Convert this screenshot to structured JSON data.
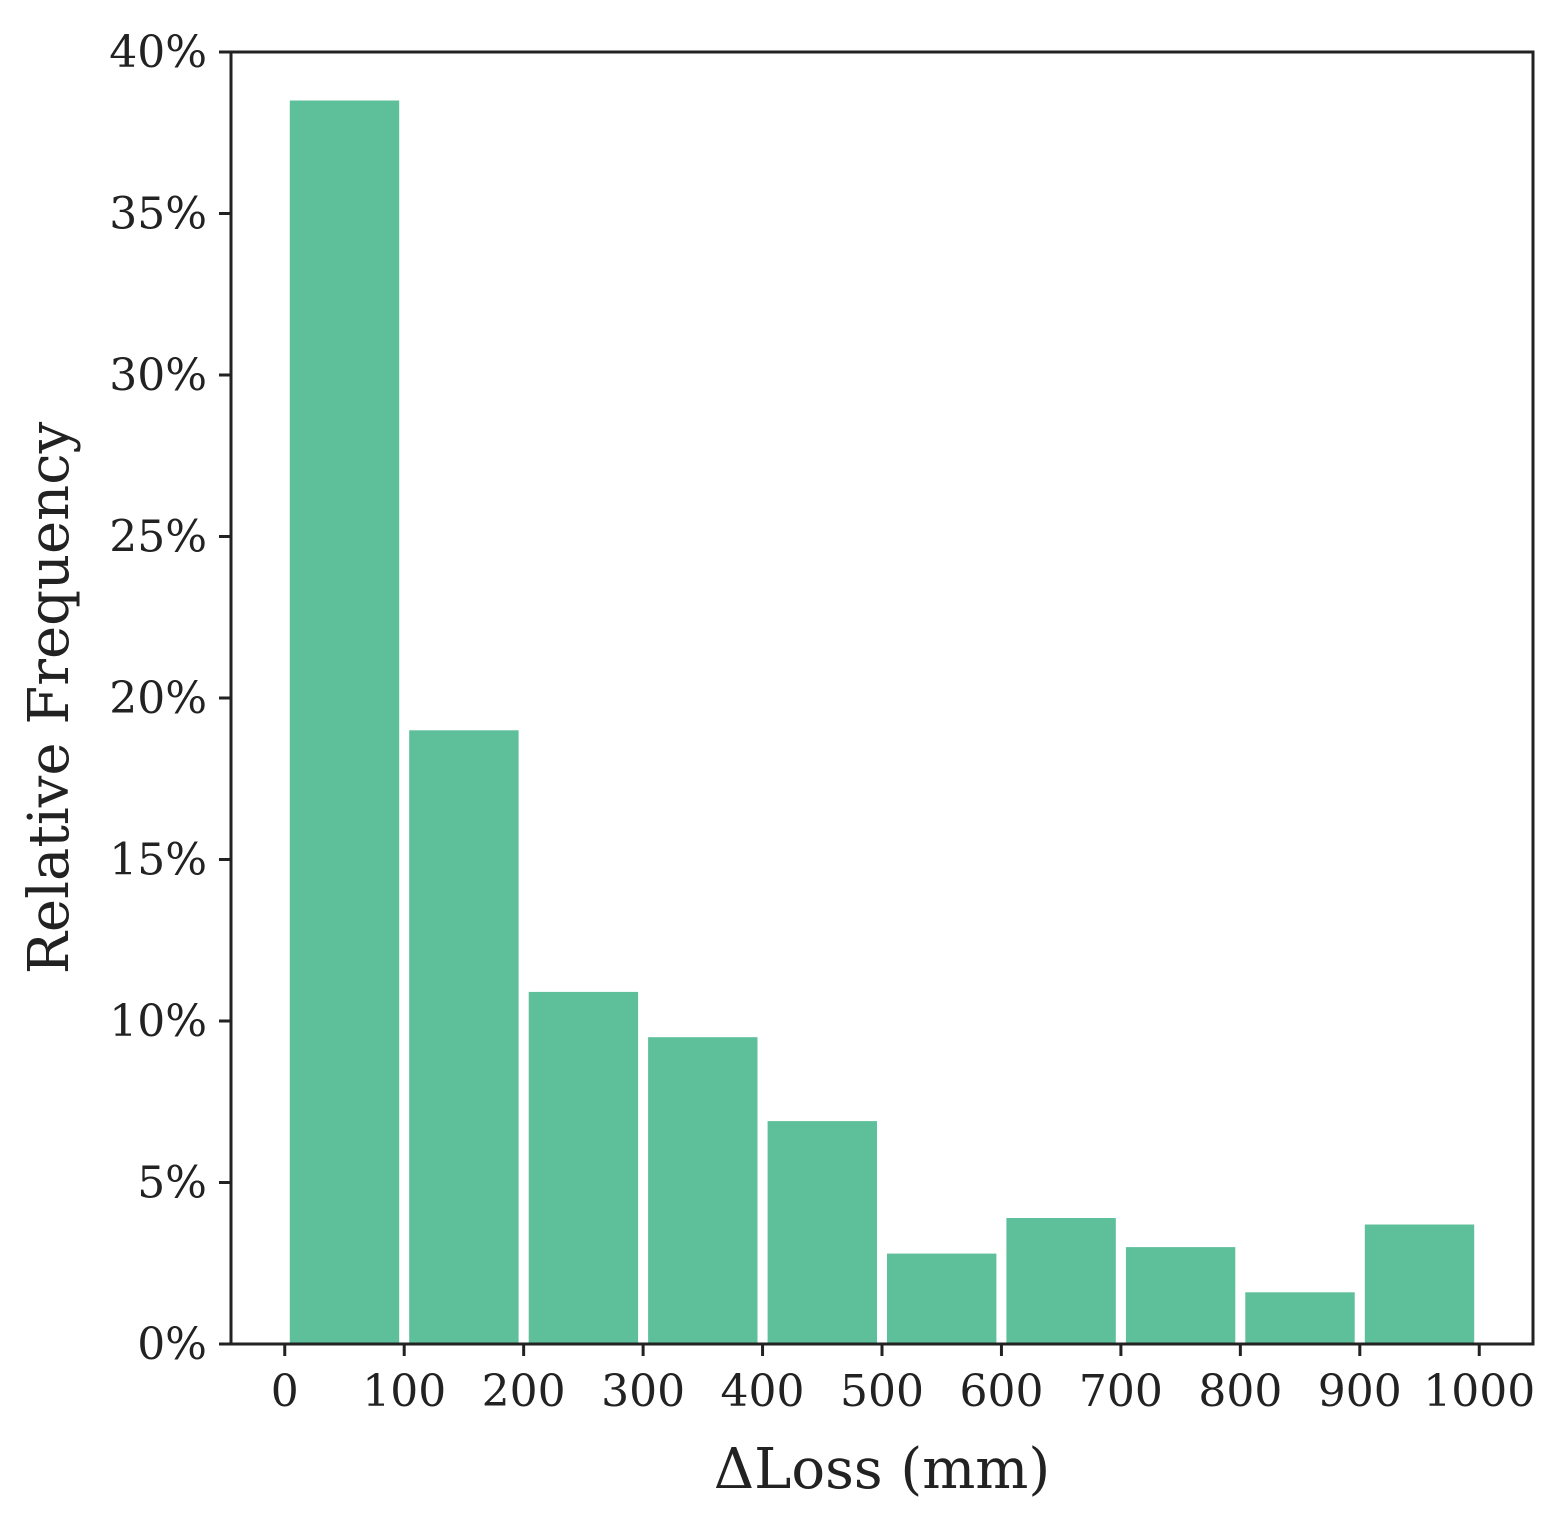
{
  "colors": {
    "bar": "#5ec09a",
    "axis": "#222222",
    "background": "#ffffff"
  },
  "chart_data": {
    "type": "bar",
    "title": "",
    "xlabel": "ΔLoss (mm)",
    "ylabel": "Relative Frequency",
    "bin_edges": [
      0,
      100,
      200,
      300,
      400,
      500,
      600,
      700,
      800,
      900,
      1000
    ],
    "values": [
      38.5,
      19.0,
      10.9,
      9.5,
      6.9,
      2.8,
      3.9,
      3.0,
      1.6,
      3.7
    ],
    "value_unit": "%",
    "xlim": [
      -45,
      1045
    ],
    "ylim": [
      0,
      40
    ],
    "x_ticks": [
      0,
      100,
      200,
      300,
      400,
      500,
      600,
      700,
      800,
      900,
      1000
    ],
    "x_tick_labels": [
      "0",
      "100",
      "200",
      "300",
      "400",
      "500",
      "600",
      "700",
      "800",
      "900",
      "1000"
    ],
    "y_ticks": [
      0,
      5,
      10,
      15,
      20,
      25,
      30,
      35,
      40
    ],
    "y_tick_labels": [
      "0%",
      "5%",
      "10%",
      "15%",
      "20%",
      "25%",
      "30%",
      "35%",
      "40%"
    ],
    "grid": false,
    "legend": "none"
  }
}
